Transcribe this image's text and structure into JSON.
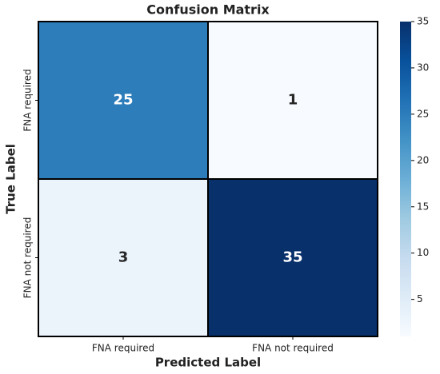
{
  "chart_data": {
    "type": "heatmap",
    "title": "Confusion Matrix",
    "x_label": "Predicted Label",
    "y_label": "True Label",
    "x_categories": [
      "FNA required",
      "FNA not required"
    ],
    "y_categories": [
      "FNA required",
      "FNA not required"
    ],
    "values": [
      [
        25,
        1
      ],
      [
        3,
        35
      ]
    ],
    "colormap": "Blues",
    "clim": [
      1,
      35
    ],
    "cticks": [
      5,
      10,
      15,
      20,
      25,
      30,
      35
    ]
  }
}
